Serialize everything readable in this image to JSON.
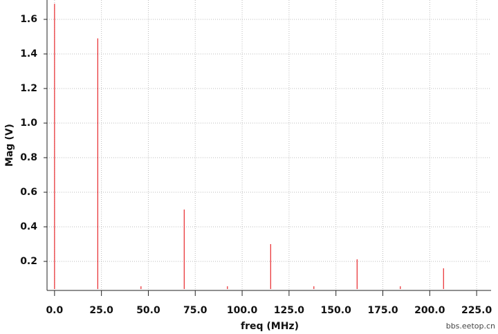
{
  "chart_data": {
    "type": "stem",
    "x_label": "freq (MHz)",
    "y_label": "Mag (V)",
    "watermark": "bbs.eetop.cn",
    "x": [
      0,
      23.04,
      46.08,
      69.12,
      92.16,
      115.2,
      138.24,
      161.28,
      184.32,
      207.36
    ],
    "values": [
      1.69,
      1.49,
      0.056,
      0.5,
      0.056,
      0.3,
      0.056,
      0.212,
      0.056,
      0.16
    ],
    "color": "#e8262a",
    "xlim": [
      -4,
      232.7
    ],
    "ylim": [
      0.032,
      1.712
    ],
    "xticks": [
      {
        "value": 0,
        "label": "0.0"
      },
      {
        "value": 25,
        "label": "25.0"
      },
      {
        "value": 50,
        "label": "50.0"
      },
      {
        "value": 75,
        "label": "75.0"
      },
      {
        "value": 100,
        "label": "100.0"
      },
      {
        "value": 125,
        "label": "125.0"
      },
      {
        "value": 150,
        "label": "150.0"
      },
      {
        "value": 175,
        "label": "175.0"
      },
      {
        "value": 200,
        "label": "200.0"
      },
      {
        "value": 225,
        "label": "225.0"
      }
    ],
    "yticks": [
      0.2,
      0.4,
      0.6,
      0.8,
      {
        "value": 1.0,
        "label": "1.0"
      },
      1.2,
      1.4,
      1.6
    ],
    "grid": true
  }
}
